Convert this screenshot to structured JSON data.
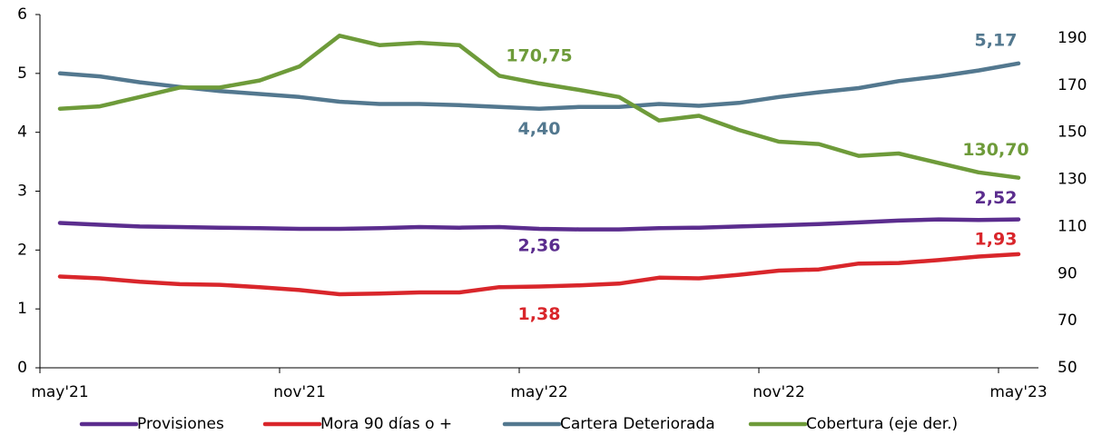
{
  "chart_data": {
    "type": "line",
    "categories": [
      "may'21",
      null,
      null,
      null,
      null,
      null,
      "nov'21",
      null,
      null,
      null,
      null,
      null,
      "may'22",
      null,
      null,
      null,
      null,
      null,
      "nov'22",
      null,
      null,
      null,
      null,
      null,
      "may'23"
    ],
    "ylim": [
      0,
      6
    ],
    "yticks": [
      0,
      1,
      2,
      3,
      4,
      5,
      6
    ],
    "y2lim": [
      50,
      200
    ],
    "y2ticks": [
      50,
      70,
      90,
      110,
      130,
      150,
      170,
      190
    ],
    "series": [
      {
        "name": "Provisiones",
        "color": "#5b2d8e",
        "values": [
          2.46,
          2.43,
          2.4,
          2.39,
          2.38,
          2.37,
          2.36,
          2.36,
          2.37,
          2.39,
          2.38,
          2.39,
          2.36,
          2.35,
          2.35,
          2.37,
          2.38,
          2.4,
          2.42,
          2.44,
          2.47,
          2.5,
          2.52,
          2.51,
          2.52
        ],
        "value_labels": [
          null,
          null,
          null,
          null,
          null,
          null,
          null,
          null,
          null,
          null,
          null,
          null,
          "2,36",
          null,
          null,
          null,
          null,
          null,
          null,
          null,
          null,
          null,
          null,
          null,
          "2,52"
        ]
      },
      {
        "name": "Mora 90 días o +",
        "color": "#d9262b",
        "values": [
          1.55,
          1.52,
          1.46,
          1.42,
          1.41,
          1.37,
          1.32,
          1.25,
          1.26,
          1.28,
          1.28,
          1.37,
          1.38,
          1.4,
          1.43,
          1.53,
          1.52,
          1.58,
          1.65,
          1.67,
          1.77,
          1.78,
          1.83,
          1.89,
          1.93
        ],
        "value_labels": [
          null,
          null,
          null,
          null,
          null,
          null,
          null,
          null,
          null,
          null,
          null,
          null,
          "1,38",
          null,
          null,
          null,
          null,
          null,
          null,
          null,
          null,
          null,
          null,
          null,
          "1,93"
        ]
      },
      {
        "name": "Cartera Deteriorada",
        "color": "#53788f",
        "values": [
          5.0,
          4.95,
          4.85,
          4.77,
          4.7,
          4.65,
          4.6,
          4.52,
          4.48,
          4.48,
          4.46,
          4.43,
          4.4,
          4.43,
          4.43,
          4.48,
          4.45,
          4.5,
          4.6,
          4.68,
          4.75,
          4.87,
          4.95,
          5.05,
          5.17
        ],
        "value_labels": [
          null,
          null,
          null,
          null,
          null,
          null,
          null,
          null,
          null,
          null,
          null,
          null,
          "4,40",
          null,
          null,
          null,
          null,
          null,
          null,
          null,
          null,
          null,
          null,
          null,
          "5,17"
        ]
      },
      {
        "name": "Cobertura (eje der.)",
        "color": "#6e9b3a",
        "axis": "y2",
        "values": [
          160,
          161,
          165,
          169,
          169,
          172,
          178,
          191,
          187,
          188,
          187,
          174,
          170.75,
          168,
          165,
          155,
          157,
          151,
          146,
          145,
          140,
          141,
          137,
          133,
          130.7
        ],
        "value_labels": [
          null,
          null,
          null,
          null,
          null,
          null,
          null,
          null,
          null,
          null,
          null,
          null,
          "170,75",
          null,
          null,
          null,
          null,
          null,
          null,
          null,
          null,
          null,
          null,
          null,
          "130,70"
        ]
      }
    ]
  }
}
